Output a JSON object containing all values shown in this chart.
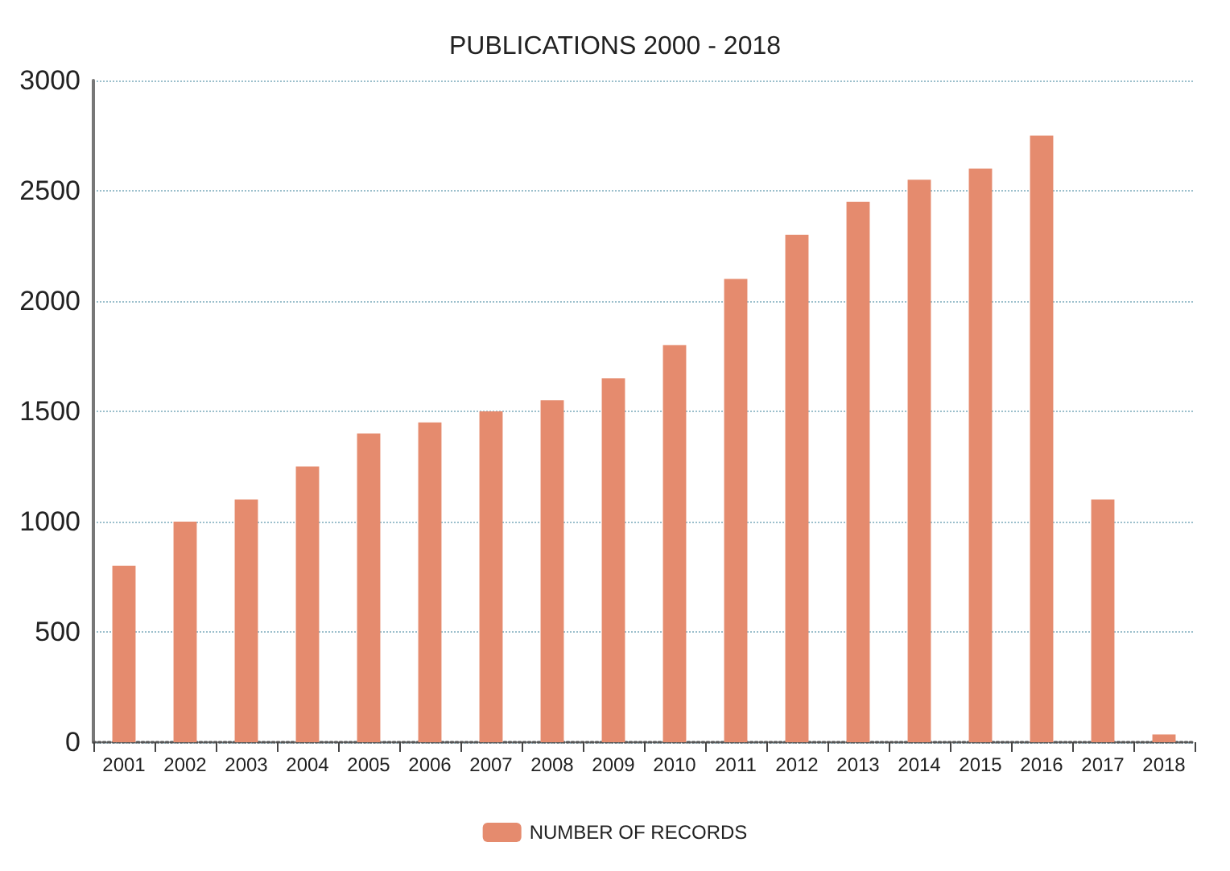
{
  "chart_data": {
    "type": "bar",
    "title": "PUBLICATIONS 2000 - 2018",
    "categories": [
      "2001",
      "2002",
      "2003",
      "2004",
      "2005",
      "2006",
      "2007",
      "2008",
      "2009",
      "2010",
      "2011",
      "2012",
      "2013",
      "2014",
      "2015",
      "2016",
      "2017",
      "2018"
    ],
    "series": [
      {
        "name": "NUMBER OF RECORDS",
        "color": "#e58b6e",
        "values": [
          800,
          1000,
          1100,
          1250,
          1400,
          1450,
          1500,
          1550,
          1650,
          1800,
          2100,
          2300,
          2450,
          2550,
          2600,
          2750,
          1100,
          35
        ]
      }
    ],
    "ylim": [
      0,
      3000
    ],
    "yticks": [
      0,
      500,
      1000,
      1500,
      2000,
      2500,
      3000
    ],
    "grid": "y",
    "legend": "bottom"
  }
}
